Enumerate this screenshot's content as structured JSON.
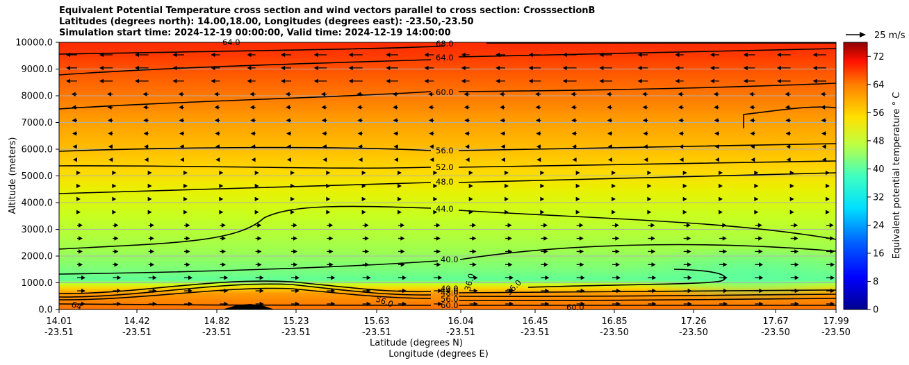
{
  "title_lines": [
    "Equivalent Potential Temperature cross section and wind vectors parallel to cross section: CrosssectionB",
    "Latitudes (degrees north): 14.00,18.00, Longitudes (degrees east): -23.50,-23.50",
    "Simulation start time: 2024-12-19 00:00:00, Valid time: 2024-12-19 14:00:00"
  ],
  "chart_data": {
    "type": "heatmap",
    "title": "Equivalent Potential Temperature cross section and wind vectors parallel to cross section: CrosssectionB",
    "ylabel": "Altitude (meters)",
    "xlabel_lines": [
      "Latitude (degrees N)",
      "Longitude (degrees E)"
    ],
    "ylim": [
      0,
      10000
    ],
    "y_ticks": [
      "0.0",
      "1000.0",
      "2000.0",
      "3000.0",
      "4000.0",
      "5000.0",
      "6000.0",
      "7000.0",
      "8000.0",
      "9000.0",
      "10000.0"
    ],
    "x_ticks": [
      {
        "lat": "14.01",
        "lon": "-23.51"
      },
      {
        "lat": "14.42",
        "lon": "-23.51"
      },
      {
        "lat": "14.82",
        "lon": "-23.51"
      },
      {
        "lat": "15.23",
        "lon": "-23.51"
      },
      {
        "lat": "15.63",
        "lon": "-23.51"
      },
      {
        "lat": "16.04",
        "lon": "-23.51"
      },
      {
        "lat": "16.45",
        "lon": "-23.51"
      },
      {
        "lat": "16.85",
        "lon": "-23.50"
      },
      {
        "lat": "17.26",
        "lon": "-23.50"
      },
      {
        "lat": "17.67",
        "lon": "-23.50"
      },
      {
        "lat": "17.99",
        "lon": "-23.50"
      }
    ],
    "colorbar": {
      "label": "Equivalent potential temperature $^\\circ$C",
      "label_display": "Equivalent potential temperature ° C",
      "min": 0,
      "max": 76,
      "ticks": [
        "0",
        "8",
        "16",
        "24",
        "32",
        "40",
        "48",
        "56",
        "64",
        "72"
      ]
    },
    "quiver_key": {
      "label": "25 m/s"
    },
    "grid": true,
    "contour_levels": [
      "64.0",
      "68.0",
      "64.0",
      "60.0",
      "56.0",
      "52.0",
      "48.0",
      "44.0",
      "40.0",
      "36.0",
      "36.0",
      "60.0",
      "56.0",
      "48.0",
      "44.0",
      "40.0",
      "60.0",
      "56.0",
      "64"
    ]
  }
}
